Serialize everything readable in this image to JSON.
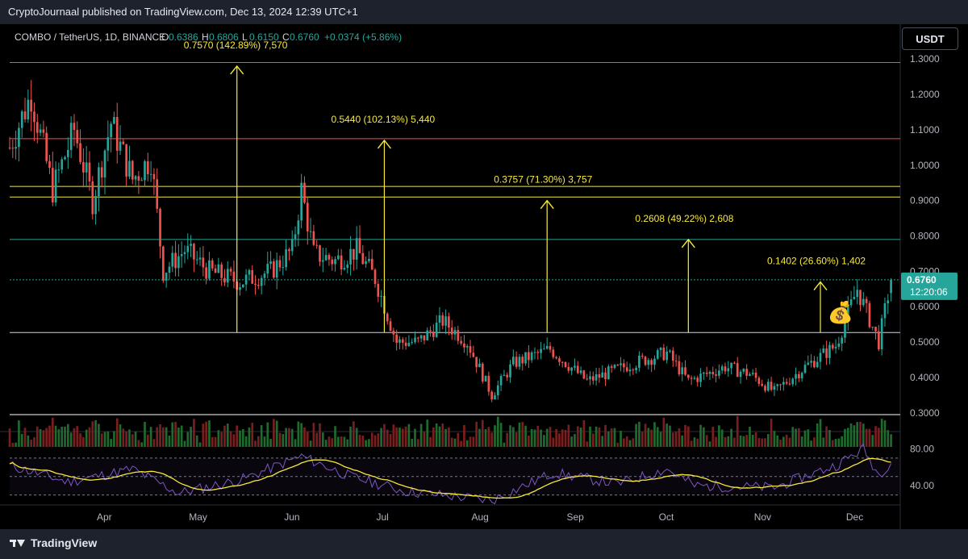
{
  "header": {
    "published": "CryptoJournaal published on TradingView.com, Dec 13, 2024 12:39 UTC+1",
    "symbol": "COMBO / TetherUS, 1D, BINANCE",
    "ohlc": [
      {
        "label": "O",
        "value": "0.6386"
      },
      {
        "label": "H",
        "value": "0.6806"
      },
      {
        "label": "L",
        "value": "0.6150"
      },
      {
        "label": "C",
        "value": "0.6760"
      }
    ],
    "change": "+0.0374 (+5.86%)",
    "currency_button": "USDT"
  },
  "footer": {
    "brand": "TradingView"
  },
  "colors": {
    "up": "#26a69a",
    "down": "#ef5350",
    "vol_up": "#1f6b2e",
    "vol_down": "#7a1f1f",
    "annotation": "#f7e93a",
    "rsi": "#7e57c2",
    "rsi_ma": "#f7e93a",
    "price_label": "#26a69a"
  },
  "chart_data": [
    {
      "type": "candlestick",
      "title": "COMBO / TetherUS, 1D, BINANCE",
      "x_ticks": [
        "Apr",
        "May",
        "Jun",
        "Jul",
        "Aug",
        "Sep",
        "Oct",
        "Nov",
        "Dec"
      ],
      "y_ticks": [
        "1.3000",
        "1.2000",
        "1.1000",
        "1.0000",
        "0.9000",
        "0.8000",
        "0.7000",
        "0.6000",
        "0.5000",
        "0.4000",
        "0.3000"
      ],
      "ylim": [
        0.27,
        1.33
      ],
      "last_price": {
        "value": "0.6760",
        "countdown": "12:20:06"
      },
      "price_path": [
        {
          "date": "2024-03-01",
          "close": 1.05
        },
        {
          "date": "2024-03-08",
          "close": 1.2
        },
        {
          "date": "2024-03-15",
          "close": 0.93
        },
        {
          "date": "2024-03-22",
          "close": 1.1
        },
        {
          "date": "2024-03-28",
          "close": 0.9
        },
        {
          "date": "2024-04-03",
          "close": 1.12
        },
        {
          "date": "2024-04-10",
          "close": 0.96
        },
        {
          "date": "2024-04-16",
          "close": 1.02
        },
        {
          "date": "2024-04-20",
          "close": 0.7
        },
        {
          "date": "2024-04-27",
          "close": 0.76
        },
        {
          "date": "2024-05-05",
          "close": 0.7
        },
        {
          "date": "2024-05-15",
          "close": 0.67
        },
        {
          "date": "2024-05-25",
          "close": 0.7
        },
        {
          "date": "2024-06-01",
          "close": 0.76
        },
        {
          "date": "2024-06-04",
          "close": 0.93
        },
        {
          "date": "2024-06-08",
          "close": 0.75
        },
        {
          "date": "2024-06-15",
          "close": 0.73
        },
        {
          "date": "2024-06-22",
          "close": 0.76
        },
        {
          "date": "2024-06-28",
          "close": 0.68
        },
        {
          "date": "2024-07-05",
          "close": 0.5
        },
        {
          "date": "2024-07-12",
          "close": 0.5
        },
        {
          "date": "2024-07-20",
          "close": 0.56
        },
        {
          "date": "2024-07-28",
          "close": 0.5
        },
        {
          "date": "2024-08-05",
          "close": 0.35
        },
        {
          "date": "2024-08-12",
          "close": 0.44
        },
        {
          "date": "2024-08-24",
          "close": 0.48
        },
        {
          "date": "2024-09-05",
          "close": 0.39
        },
        {
          "date": "2024-09-20",
          "close": 0.44
        },
        {
          "date": "2024-10-01",
          "close": 0.47
        },
        {
          "date": "2024-10-08",
          "close": 0.39
        },
        {
          "date": "2024-10-20",
          "close": 0.43
        },
        {
          "date": "2024-10-28",
          "close": 0.41
        },
        {
          "date": "2024-11-05",
          "close": 0.36
        },
        {
          "date": "2024-11-15",
          "close": 0.43
        },
        {
          "date": "2024-11-25",
          "close": 0.49
        },
        {
          "date": "2024-12-02",
          "close": 0.65
        },
        {
          "date": "2024-12-09",
          "close": 0.5
        },
        {
          "date": "2024-12-13",
          "close": 0.676
        }
      ],
      "horizontal_levels": [
        {
          "value": 1.29,
          "color": "#ef5350"
        },
        {
          "value": 1.075,
          "color": "#ef5350"
        },
        {
          "value": 0.94,
          "color": "#f7e93a"
        },
        {
          "value": 0.91,
          "color": "#f7e93a"
        },
        {
          "value": 0.79,
          "color": "#26a69a"
        },
        {
          "value": 0.676,
          "color": "#26a69a",
          "dotted": true
        },
        {
          "value": 0.527,
          "color": "#d1d4dc"
        },
        {
          "value": 0.295,
          "color": "#ffffff"
        }
      ],
      "annotations": [
        {
          "text": "0.7570 (142.89%) 7,570",
          "date": "2024-05-14",
          "from": 0.527,
          "to": 1.28
        },
        {
          "text": "0.5440 (102.13%) 5,440",
          "date": "2024-07-01",
          "from": 0.527,
          "to": 1.07
        },
        {
          "text": "0.3757 (71.30%) 3,757",
          "date": "2024-08-23",
          "from": 0.527,
          "to": 0.9
        },
        {
          "text": "0.2608 (49.22%) 2,608",
          "date": "2024-10-08",
          "from": 0.527,
          "to": 0.79
        },
        {
          "text": "0.1402 (26.60%) 1,402",
          "date": "2024-11-20",
          "from": 0.527,
          "to": 0.67
        }
      ],
      "marker": {
        "icon": "money-bag-icon",
        "glyph": "💰",
        "date": "2024-11-26",
        "value": 0.6
      }
    },
    {
      "type": "line",
      "indicator": "rsi",
      "y_ticks": [
        "80.00",
        "40.00"
      ],
      "ylim": [
        20,
        90
      ],
      "bands": [
        70,
        50,
        30
      ],
      "series_values_sample": [
        {
          "date": "2024-03-01",
          "rsi": 62
        },
        {
          "date": "2024-03-20",
          "rsi": 44
        },
        {
          "date": "2024-04-10",
          "rsi": 58
        },
        {
          "date": "2024-04-25",
          "rsi": 32
        },
        {
          "date": "2024-05-15",
          "rsi": 46
        },
        {
          "date": "2024-06-04",
          "rsi": 72
        },
        {
          "date": "2024-06-20",
          "rsi": 50
        },
        {
          "date": "2024-07-08",
          "rsi": 34
        },
        {
          "date": "2024-08-05",
          "rsi": 24
        },
        {
          "date": "2024-08-25",
          "rsi": 54
        },
        {
          "date": "2024-09-15",
          "rsi": 42
        },
        {
          "date": "2024-10-01",
          "rsi": 58
        },
        {
          "date": "2024-10-10",
          "rsi": 40
        },
        {
          "date": "2024-11-05",
          "rsi": 38
        },
        {
          "date": "2024-11-25",
          "rsi": 62
        },
        {
          "date": "2024-12-04",
          "rsi": 80
        },
        {
          "date": "2024-12-09",
          "rsi": 52
        },
        {
          "date": "2024-12-13",
          "rsi": 66
        }
      ]
    }
  ]
}
